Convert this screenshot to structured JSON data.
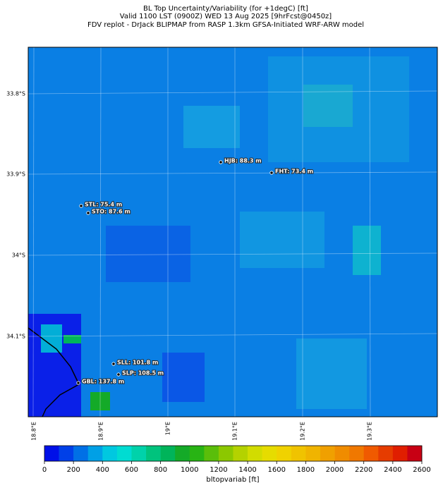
{
  "header": {
    "title": [
      "BL Top Uncertainty/Variability (for +1degC) [ft]",
      "Valid 1100 LST (0900Z) WED 13 Aug 2025 [9hrFcst@0450z]",
      "FDV replot - DrJack BLIPMAP from RASP 1.3km GFSA-Initiated WRF-ARW model"
    ]
  },
  "map": {
    "lat_labels": [
      "33.8°S",
      "33.9°S",
      "34°S",
      "34.1°S"
    ],
    "lon_labels": [
      "18.8°E",
      "18.9°E",
      "19°E",
      "19.1°E",
      "19.2°E",
      "19.3°E"
    ],
    "stations": [
      "HJB: 88.3 m",
      "FHT: 73.4 m",
      "STL: 75.4 m",
      "STO: 87.6 m",
      "SLL: 101.8 m",
      "SLP: 108.5 m",
      "GBL: 137.8 m"
    ]
  },
  "colorbar": {
    "label": "bltopvariab [ft]",
    "range": [
      0,
      2600
    ],
    "ticks": [
      0,
      200,
      400,
      600,
      800,
      1000,
      1200,
      1400,
      1600,
      1800,
      2000,
      2200,
      2400,
      2600
    ],
    "colors": [
      "#0010e8",
      "#0040e8",
      "#0070e6",
      "#00a0e6",
      "#00c8e0",
      "#00dcd2",
      "#00d2aa",
      "#00c37d",
      "#00b45a",
      "#14aa28",
      "#28b414",
      "#5abe0a",
      "#8cc800",
      "#b4d200",
      "#d2dc00",
      "#e6dc00",
      "#f0d200",
      "#f0c300",
      "#f0b400",
      "#f0a000",
      "#f08c00",
      "#f07800",
      "#f05a00",
      "#e63c00",
      "#e01e00",
      "#c80014"
    ]
  }
}
